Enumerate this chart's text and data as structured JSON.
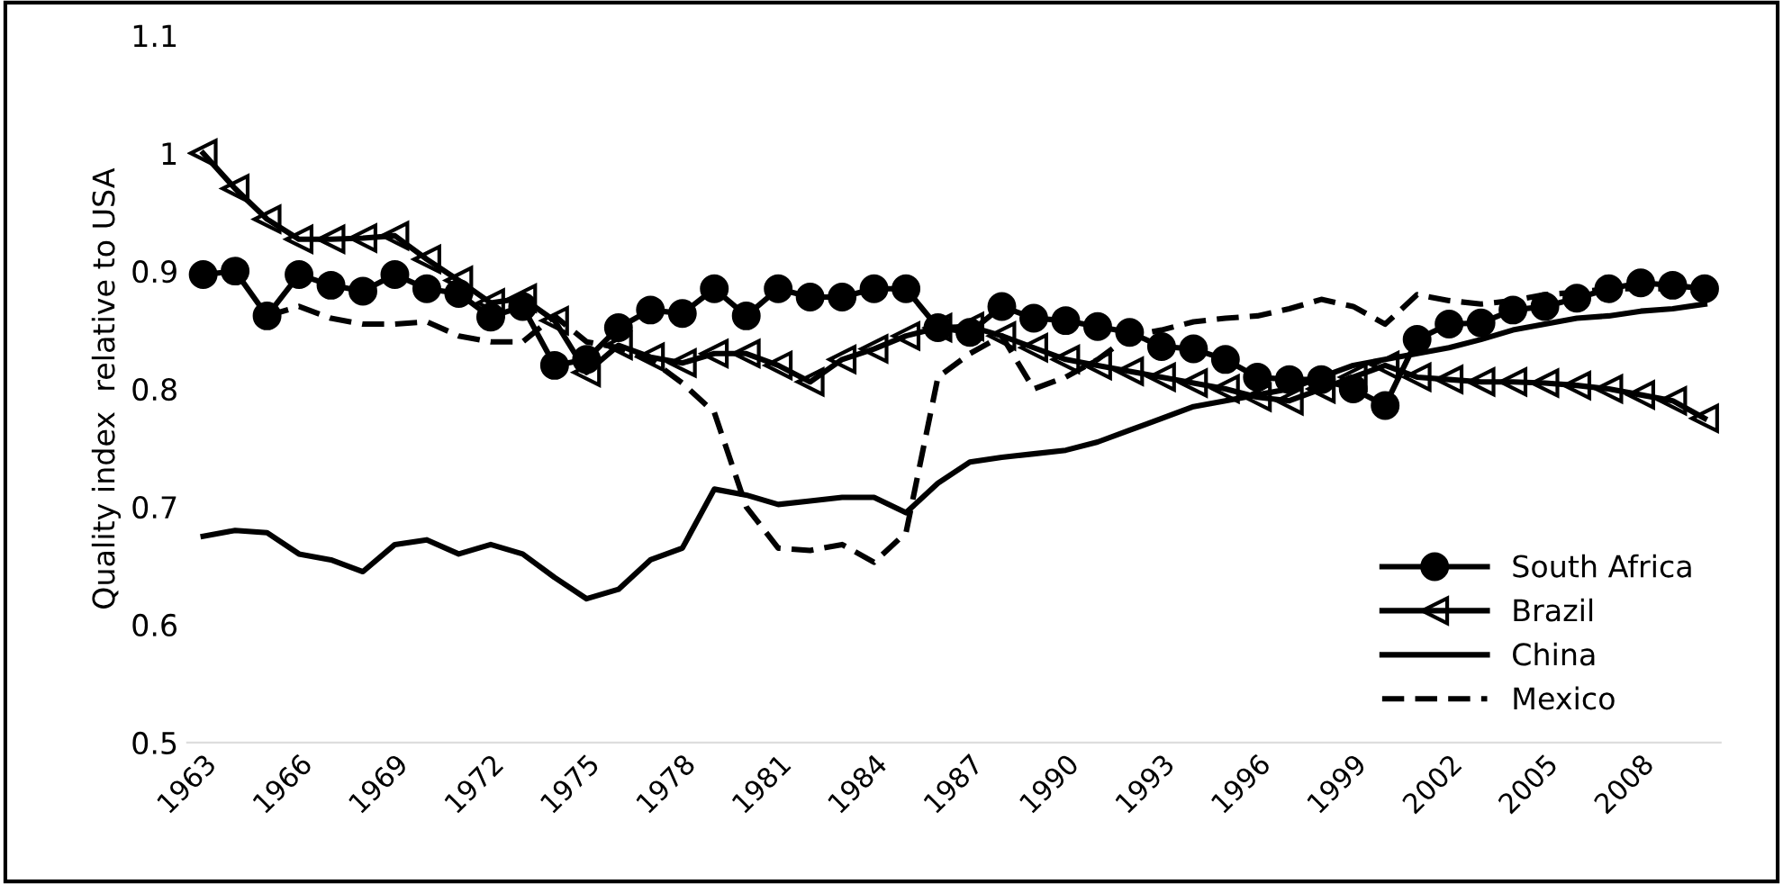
{
  "chart_data": {
    "type": "line",
    "ylabel": "Quality index  relative to USA",
    "categories": [
      "1963",
      null,
      null,
      "1966",
      null,
      null,
      "1969",
      null,
      null,
      "1972",
      null,
      null,
      "1975",
      null,
      null,
      "1978",
      null,
      null,
      "1981",
      null,
      null,
      "1984",
      null,
      null,
      "1987",
      null,
      null,
      "1990",
      null,
      null,
      "1993",
      null,
      null,
      "1996",
      null,
      null,
      "1999",
      null,
      null,
      "2002",
      null,
      null,
      "2005",
      null,
      null,
      "2008",
      null,
      null
    ],
    "ylim": [
      0.5,
      1.1
    ],
    "yticks": [
      0.5,
      0.6,
      0.7,
      0.8,
      0.9,
      1,
      1.1
    ],
    "grid": false,
    "legend": "bottom right",
    "series": [
      {
        "name": "South Africa",
        "color": "#000000",
        "marker": "circle",
        "line_style": "solid",
        "values": [
          0.897,
          0.9,
          0.862,
          0.897,
          0.888,
          0.883,
          0.897,
          0.885,
          0.881,
          0.861,
          0.87,
          0.82,
          0.825,
          0.852,
          0.867,
          0.864,
          0.885,
          0.862,
          0.885,
          0.878,
          0.878,
          0.885,
          0.885,
          0.852,
          0.848,
          0.87,
          0.86,
          0.858,
          0.853,
          0.848,
          0.836,
          0.834,
          0.825,
          0.81,
          0.808,
          0.808,
          0.8,
          0.786,
          0.842,
          0.855,
          0.856,
          0.867,
          0.87,
          0.877,
          0.885,
          0.89,
          0.888,
          0.885
        ]
      },
      {
        "name": "Brazil",
        "color": "#000000",
        "marker": "triangle",
        "line_style": "solid",
        "values": [
          1.0,
          0.97,
          0.944,
          0.927,
          0.927,
          0.928,
          0.93,
          0.91,
          0.892,
          0.873,
          0.877,
          0.858,
          0.814,
          0.837,
          0.827,
          0.822,
          0.83,
          0.83,
          0.82,
          0.806,
          0.825,
          0.834,
          0.845,
          0.852,
          0.853,
          0.845,
          0.835,
          0.825,
          0.82,
          0.815,
          0.81,
          0.805,
          0.8,
          0.793,
          0.79,
          0.8,
          0.81,
          0.82,
          0.81,
          0.808,
          0.806,
          0.806,
          0.805,
          0.803,
          0.8,
          0.795,
          0.79,
          0.775
        ]
      },
      {
        "name": "China",
        "color": "#000000",
        "marker": "none",
        "line_style": "solid",
        "values": [
          0.675,
          0.68,
          0.678,
          0.66,
          0.655,
          0.645,
          0.668,
          0.672,
          0.66,
          0.668,
          0.66,
          0.64,
          0.622,
          0.63,
          0.655,
          0.665,
          0.715,
          0.71,
          0.702,
          0.705,
          0.708,
          0.708,
          0.695,
          0.72,
          0.738,
          0.742,
          0.745,
          0.748,
          0.755,
          0.765,
          0.775,
          0.785,
          0.79,
          0.795,
          0.8,
          0.81,
          0.82,
          0.825,
          0.83,
          0.835,
          0.842,
          0.85,
          0.855,
          0.86,
          0.862,
          0.866,
          0.868,
          0.872
        ]
      },
      {
        "name": "Mexico",
        "color": "#000000",
        "marker": "none",
        "line_style": "dashed",
        "values": [
          null,
          null,
          0.862,
          0.87,
          0.86,
          0.855,
          0.855,
          0.857,
          0.845,
          0.84,
          0.84,
          0.862,
          0.84,
          0.835,
          0.825,
          0.805,
          0.78,
          0.7,
          0.665,
          0.663,
          0.668,
          0.653,
          0.678,
          0.81,
          0.83,
          0.845,
          0.8,
          0.81,
          0.825,
          0.845,
          0.85,
          0.857,
          0.86,
          0.862,
          0.868,
          0.876,
          0.87,
          0.855,
          0.88,
          0.875,
          0.872,
          0.875,
          0.88,
          0.882,
          0.885,
          0.885,
          0.885,
          0.882
        ]
      }
    ]
  }
}
